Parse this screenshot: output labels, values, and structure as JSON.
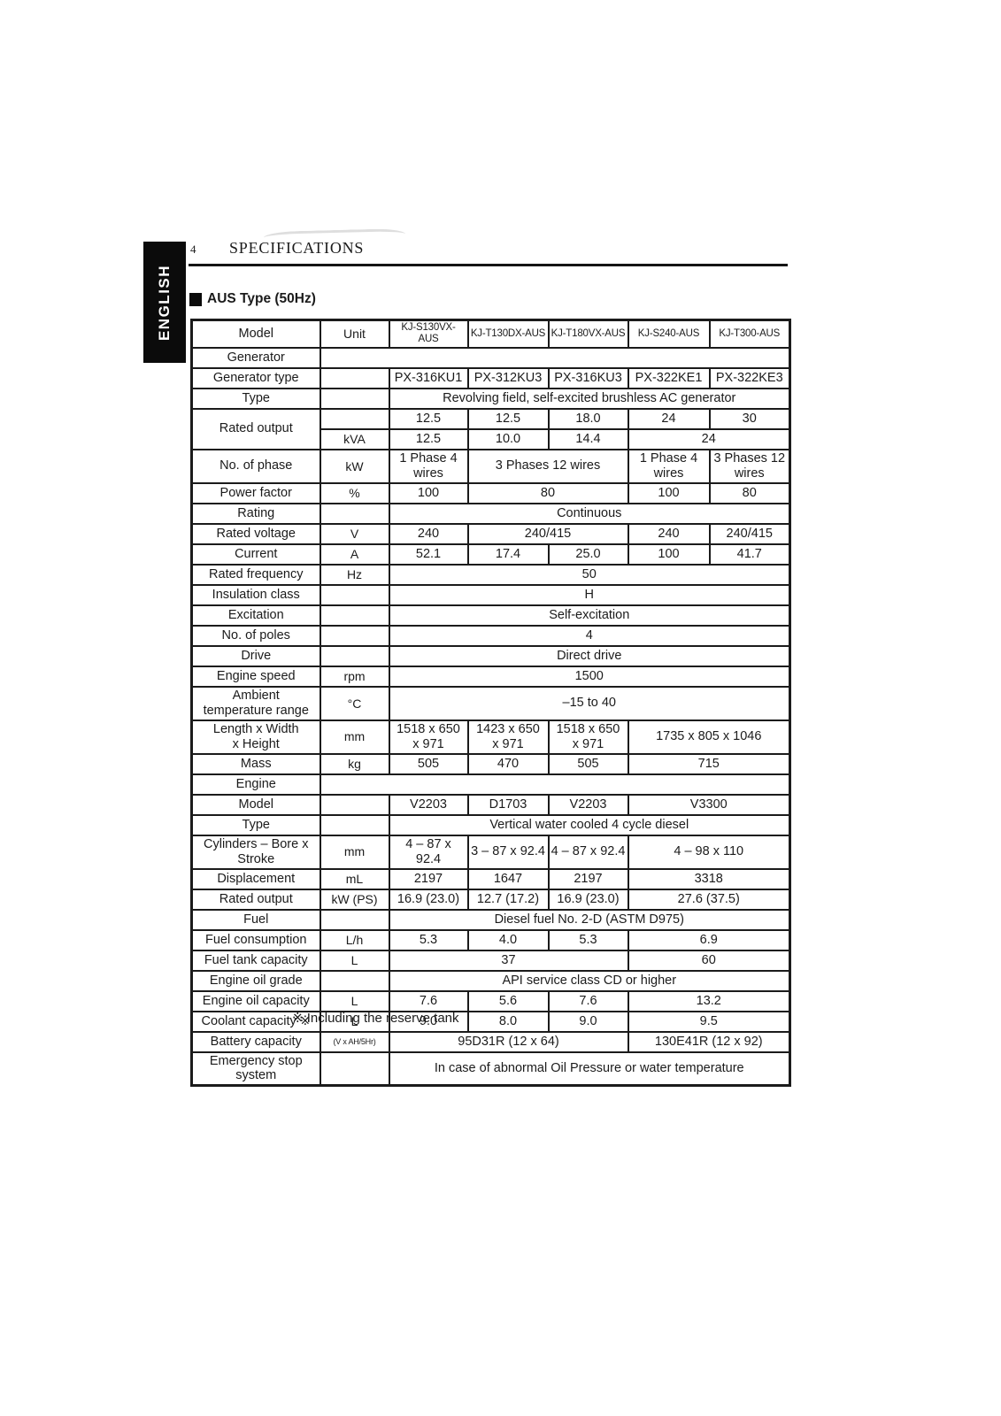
{
  "page": {
    "page_number": "4",
    "header_title": "SPECIFICATIONS",
    "sidebar_label": "ENGLISH",
    "section_title": "AUS Type (50Hz)",
    "footnote": "※ Including the reserve tank"
  },
  "table": {
    "rows": [
      {
        "cells": [
          {
            "t": "Model",
            "k": "l"
          },
          {
            "t": "Unit",
            "k": "u"
          },
          {
            "t": "KJ-S130VX-AUS",
            "k": "m"
          },
          {
            "t": "KJ-T130DX-AUS",
            "k": "m"
          },
          {
            "t": "KJ-T180VX-AUS",
            "k": "m"
          },
          {
            "t": "KJ-S240-AUS",
            "k": "m"
          },
          {
            "t": "KJ-T300-AUS",
            "k": "m"
          }
        ]
      },
      {
        "cells": [
          {
            "t": "Generator",
            "k": "l"
          },
          {
            "t": "",
            "k": "s",
            "cs": 6
          }
        ]
      },
      {
        "cells": [
          {
            "t": "Generator type",
            "k": "l"
          },
          {
            "t": "",
            "k": "u"
          },
          {
            "t": "PX-316KU1"
          },
          {
            "t": "PX-312KU3"
          },
          {
            "t": "PX-316KU3"
          },
          {
            "t": "PX-322KE1"
          },
          {
            "t": "PX-322KE3"
          }
        ]
      },
      {
        "cells": [
          {
            "t": "Type",
            "k": "l"
          },
          {
            "t": "",
            "k": "u"
          },
          {
            "t": "Revolving field, self-excited brushless AC generator",
            "cs": 5
          }
        ]
      },
      {
        "cells": [
          {
            "t": "Rated output",
            "k": "l",
            "rs": 2
          },
          {
            "t": "",
            "k": "u"
          },
          {
            "t": "12.5"
          },
          {
            "t": "12.5"
          },
          {
            "t": "18.0"
          },
          {
            "t": "24"
          },
          {
            "t": "30"
          }
        ]
      },
      {
        "cells": [
          {
            "t": "kVA",
            "k": "u"
          },
          {
            "t": "12.5"
          },
          {
            "t": "10.0"
          },
          {
            "t": "14.4"
          },
          {
            "t": "24",
            "cs": 2
          }
        ]
      },
      {
        "cells": [
          {
            "t": "No. of phase",
            "k": "l"
          },
          {
            "t": "kW",
            "k": "u"
          },
          {
            "t": "1 Phase 4\nwires"
          },
          {
            "t": "3 Phases 12 wires",
            "cs": 2
          },
          {
            "t": "1 Phase 4\nwires"
          },
          {
            "t": "3 Phases 12\nwires"
          }
        ]
      },
      {
        "cells": [
          {
            "t": "Power factor",
            "k": "l"
          },
          {
            "t": "%",
            "k": "u"
          },
          {
            "t": "100"
          },
          {
            "t": "80",
            "cs": 2
          },
          {
            "t": "100"
          },
          {
            "t": "80"
          }
        ]
      },
      {
        "cells": [
          {
            "t": "Rating",
            "k": "l"
          },
          {
            "t": "",
            "k": "u"
          },
          {
            "t": "Continuous",
            "cs": 5
          }
        ]
      },
      {
        "cells": [
          {
            "t": "Rated voltage",
            "k": "l"
          },
          {
            "t": "V",
            "k": "u"
          },
          {
            "t": "240"
          },
          {
            "t": "240/415",
            "cs": 2
          },
          {
            "t": "240"
          },
          {
            "t": "240/415"
          }
        ]
      },
      {
        "cells": [
          {
            "t": "Current",
            "k": "l"
          },
          {
            "t": "A",
            "k": "u"
          },
          {
            "t": "52.1"
          },
          {
            "t": "17.4"
          },
          {
            "t": "25.0"
          },
          {
            "t": "100"
          },
          {
            "t": "41.7"
          }
        ]
      },
      {
        "cells": [
          {
            "t": "Rated frequency",
            "k": "l"
          },
          {
            "t": "Hz",
            "k": "u"
          },
          {
            "t": "50",
            "cs": 5
          }
        ]
      },
      {
        "cells": [
          {
            "t": "Insulation class",
            "k": "l"
          },
          {
            "t": "",
            "k": "u"
          },
          {
            "t": "H",
            "cs": 5
          }
        ]
      },
      {
        "cells": [
          {
            "t": "Excitation",
            "k": "l"
          },
          {
            "t": "",
            "k": "u"
          },
          {
            "t": "Self-excitation",
            "cs": 5
          }
        ]
      },
      {
        "cells": [
          {
            "t": "No. of poles",
            "k": "l"
          },
          {
            "t": "",
            "k": "u"
          },
          {
            "t": "4",
            "cs": 5
          }
        ]
      },
      {
        "cells": [
          {
            "t": "Drive",
            "k": "l"
          },
          {
            "t": "",
            "k": "u"
          },
          {
            "t": "Direct drive",
            "cs": 5
          }
        ]
      },
      {
        "cells": [
          {
            "t": "Engine speed",
            "k": "l"
          },
          {
            "t": "rpm",
            "k": "u"
          },
          {
            "t": "1500",
            "cs": 5
          }
        ]
      },
      {
        "cells": [
          {
            "t": "Ambient\ntemperature range",
            "k": "l"
          },
          {
            "t": "°C",
            "k": "u"
          },
          {
            "t": "–15 to 40",
            "cs": 5
          }
        ]
      },
      {
        "cells": [
          {
            "t": "Length x Width\nx Height",
            "k": "l"
          },
          {
            "t": "mm",
            "k": "u"
          },
          {
            "t": "1518 x 650\nx 971"
          },
          {
            "t": "1423 x 650\nx 971"
          },
          {
            "t": "1518 x 650\nx 971"
          },
          {
            "t": "1735 x 805 x 1046",
            "cs": 2
          }
        ]
      },
      {
        "cells": [
          {
            "t": "Mass",
            "k": "l"
          },
          {
            "t": "kg",
            "k": "u"
          },
          {
            "t": "505"
          },
          {
            "t": "470"
          },
          {
            "t": "505"
          },
          {
            "t": "715",
            "cs": 2
          }
        ]
      },
      {
        "cells": [
          {
            "t": "Engine",
            "k": "l"
          },
          {
            "t": "",
            "k": "s",
            "cs": 6
          }
        ]
      },
      {
        "cells": [
          {
            "t": "Model",
            "k": "l"
          },
          {
            "t": "",
            "k": "u"
          },
          {
            "t": "V2203"
          },
          {
            "t": "D1703"
          },
          {
            "t": "V2203"
          },
          {
            "t": "V3300",
            "cs": 2
          }
        ]
      },
      {
        "cells": [
          {
            "t": "Type",
            "k": "l"
          },
          {
            "t": "",
            "k": "u"
          },
          {
            "t": "Vertical water cooled 4 cycle diesel",
            "cs": 5
          }
        ]
      },
      {
        "cells": [
          {
            "t": "Cylinders – Bore x\nStroke",
            "k": "l"
          },
          {
            "t": "mm",
            "k": "u"
          },
          {
            "t": "4 – 87 x 92.4"
          },
          {
            "t": "3 – 87 x 92.4"
          },
          {
            "t": "4 – 87 x 92.4"
          },
          {
            "t": "4 – 98 x 110",
            "cs": 2
          }
        ]
      },
      {
        "cells": [
          {
            "t": "Displacement",
            "k": "l"
          },
          {
            "t": "mL",
            "k": "u"
          },
          {
            "t": "2197"
          },
          {
            "t": "1647"
          },
          {
            "t": "2197"
          },
          {
            "t": "3318",
            "cs": 2
          }
        ]
      },
      {
        "cells": [
          {
            "t": "Rated output",
            "k": "l"
          },
          {
            "t": "kW (PS)",
            "k": "u"
          },
          {
            "t": "16.9 (23.0)"
          },
          {
            "t": "12.7 (17.2)"
          },
          {
            "t": "16.9 (23.0)"
          },
          {
            "t": "27.6 (37.5)",
            "cs": 2
          }
        ]
      },
      {
        "cells": [
          {
            "t": "Fuel",
            "k": "l"
          },
          {
            "t": "",
            "k": "u"
          },
          {
            "t": "Diesel fuel No. 2-D (ASTM D975)",
            "cs": 5
          }
        ]
      },
      {
        "cells": [
          {
            "t": "Fuel consumption",
            "k": "l"
          },
          {
            "t": "L/h",
            "k": "u"
          },
          {
            "t": "5.3"
          },
          {
            "t": "4.0"
          },
          {
            "t": "5.3"
          },
          {
            "t": "6.9",
            "cs": 2
          }
        ]
      },
      {
        "cells": [
          {
            "t": "Fuel tank capacity",
            "k": "l"
          },
          {
            "t": "L",
            "k": "u"
          },
          {
            "t": "37",
            "cs": 3
          },
          {
            "t": "60",
            "cs": 2
          }
        ]
      },
      {
        "cells": [
          {
            "t": "Engine oil grade",
            "k": "l"
          },
          {
            "t": "",
            "k": "u"
          },
          {
            "t": "API service class CD or higher",
            "cs": 5
          }
        ]
      },
      {
        "cells": [
          {
            "t": "Engine oil capacity",
            "k": "l"
          },
          {
            "t": "L",
            "k": "u"
          },
          {
            "t": "7.6"
          },
          {
            "t": "5.6"
          },
          {
            "t": "7.6"
          },
          {
            "t": "13.2",
            "cs": 2
          }
        ]
      },
      {
        "cells": [
          {
            "t": "Coolant capacity ※",
            "k": "l"
          },
          {
            "t": "L",
            "k": "u"
          },
          {
            "t": "9.0"
          },
          {
            "t": "8.0"
          },
          {
            "t": "9.0"
          },
          {
            "t": "9.5",
            "cs": 2
          }
        ]
      },
      {
        "cells": [
          {
            "t": "Battery capacity",
            "k": "l"
          },
          {
            "t": "(V x AH/5Hr)",
            "k": "us"
          },
          {
            "t": "95D31R (12 x 64)",
            "cs": 3
          },
          {
            "t": "130E41R (12 x 92)",
            "cs": 2
          }
        ]
      },
      {
        "cells": [
          {
            "t": "Emergency stop\nsystem",
            "k": "l"
          },
          {
            "t": "",
            "k": "u"
          },
          {
            "t": "In case of abnormal Oil Pressure or water temperature",
            "cs": 5
          }
        ]
      }
    ]
  }
}
